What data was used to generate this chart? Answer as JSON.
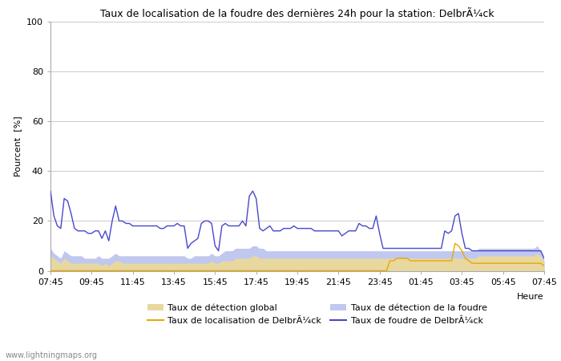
{
  "title": "Taux de localisation de la foudre des dernières 24h pour la station: DelbrÃ¼ck",
  "ylabel": "Pourcent  [%]",
  "xlabel": "Heure",
  "watermark": "www.lightningmaps.org",
  "xlabels": [
    "07:45",
    "09:45",
    "11:45",
    "13:45",
    "15:45",
    "17:45",
    "19:45",
    "21:45",
    "23:45",
    "01:45",
    "03:45",
    "05:45",
    "07:45"
  ],
  "ylim": [
    0,
    100
  ],
  "yticks": [
    0,
    20,
    40,
    60,
    80,
    100
  ],
  "color_fill1": "#e8d8a0",
  "color_fill2": "#c0c8f0",
  "color_blue": "#4848cc",
  "color_orange": "#e8a800",
  "bg_color": "#f8f8f8",
  "n_points": 145,
  "blue_line": [
    32,
    22,
    18,
    17,
    29,
    28,
    23,
    17,
    16,
    16,
    16,
    15,
    15,
    16,
    16,
    13,
    16,
    12,
    20,
    26,
    20,
    20,
    19,
    19,
    18,
    18,
    18,
    18,
    18,
    18,
    18,
    18,
    17,
    17,
    18,
    18,
    18,
    19,
    18,
    18,
    9,
    11,
    12,
    13,
    19,
    20,
    20,
    19,
    10,
    8,
    18,
    19,
    18,
    18,
    18,
    18,
    20,
    18,
    30,
    32,
    29,
    17,
    16,
    17,
    18,
    16,
    16,
    16,
    17,
    17,
    17,
    18,
    17,
    17,
    17,
    17,
    17,
    16,
    16,
    16,
    16,
    16,
    16,
    16,
    16,
    14,
    15,
    16,
    16,
    16,
    19,
    18,
    18,
    17,
    17,
    22,
    15,
    9,
    9,
    9,
    9,
    9,
    9,
    9,
    9,
    9,
    9,
    9,
    9,
    9,
    9,
    9,
    9,
    9,
    9,
    16,
    15,
    16,
    22,
    23,
    15,
    9,
    9,
    8,
    8,
    8,
    8,
    8,
    8,
    8,
    8,
    8,
    8,
    8,
    8,
    8,
    8,
    8,
    8,
    8,
    8,
    8,
    8,
    8,
    5
  ],
  "fill1_top": [
    6,
    5,
    4,
    3,
    5,
    4,
    3,
    3,
    3,
    3,
    3,
    3,
    3,
    3,
    3,
    2,
    3,
    2,
    3,
    4,
    4,
    3,
    3,
    3,
    3,
    3,
    3,
    3,
    3,
    3,
    3,
    3,
    3,
    3,
    3,
    3,
    3,
    3,
    3,
    3,
    3,
    3,
    3,
    3,
    3,
    3,
    3,
    4,
    3,
    3,
    4,
    4,
    4,
    4,
    5,
    5,
    5,
    5,
    5,
    6,
    6,
    5,
    5,
    5,
    5,
    5,
    5,
    5,
    5,
    5,
    5,
    5,
    5,
    5,
    5,
    5,
    5,
    5,
    5,
    5,
    5,
    5,
    5,
    5,
    5,
    5,
    5,
    5,
    5,
    5,
    5,
    5,
    5,
    5,
    5,
    5,
    5,
    5,
    5,
    5,
    5,
    5,
    5,
    5,
    5,
    5,
    5,
    5,
    5,
    5,
    5,
    5,
    5,
    5,
    5,
    5,
    5,
    5,
    5,
    5,
    5,
    5,
    5,
    5,
    5,
    6,
    6,
    6,
    6,
    6,
    6,
    6,
    6,
    6,
    6,
    6,
    6,
    6,
    6,
    6,
    6,
    6,
    7,
    6,
    3
  ],
  "fill2_top": [
    9,
    7,
    6,
    5,
    8,
    7,
    6,
    6,
    6,
    6,
    5,
    5,
    5,
    5,
    6,
    5,
    5,
    5,
    6,
    7,
    6,
    6,
    6,
    6,
    6,
    6,
    6,
    6,
    6,
    6,
    6,
    6,
    6,
    6,
    6,
    6,
    6,
    6,
    6,
    6,
    5,
    5,
    6,
    6,
    6,
    6,
    6,
    7,
    6,
    6,
    7,
    8,
    8,
    8,
    9,
    9,
    9,
    9,
    9,
    10,
    10,
    9,
    9,
    8,
    8,
    8,
    8,
    8,
    8,
    8,
    8,
    8,
    8,
    8,
    8,
    8,
    8,
    8,
    8,
    8,
    8,
    8,
    8,
    8,
    8,
    8,
    8,
    8,
    8,
    8,
    8,
    8,
    8,
    8,
    8,
    8,
    8,
    8,
    8,
    8,
    8,
    8,
    8,
    8,
    8,
    8,
    8,
    8,
    8,
    8,
    8,
    8,
    8,
    8,
    8,
    8,
    8,
    8,
    8,
    8,
    8,
    8,
    8,
    8,
    8,
    9,
    9,
    9,
    9,
    9,
    9,
    9,
    9,
    9,
    9,
    9,
    9,
    9,
    9,
    9,
    9,
    9,
    10,
    8,
    4
  ],
  "orange_line": [
    0,
    0,
    0,
    0,
    0,
    0,
    0,
    0,
    0,
    0,
    0,
    0,
    0,
    0,
    0,
    0,
    0,
    0,
    0,
    0,
    0,
    0,
    0,
    0,
    0,
    0,
    0,
    0,
    0,
    0,
    0,
    0,
    0,
    0,
    0,
    0,
    0,
    0,
    0,
    0,
    0,
    0,
    0,
    0,
    0,
    0,
    0,
    0,
    0,
    0,
    0,
    0,
    0,
    0,
    0,
    0,
    0,
    0,
    0,
    0,
    0,
    0,
    0,
    0,
    0,
    0,
    0,
    0,
    0,
    0,
    0,
    0,
    0,
    0,
    0,
    0,
    0,
    0,
    0,
    0,
    0,
    0,
    0,
    0,
    0,
    0,
    0,
    0,
    0,
    0,
    0,
    0,
    0,
    0,
    0,
    0,
    0,
    0,
    0,
    4,
    4,
    5,
    5,
    5,
    5,
    4,
    4,
    4,
    4,
    4,
    4,
    4,
    4,
    4,
    4,
    4,
    4,
    4,
    11,
    10,
    8,
    5,
    4,
    3,
    3,
    3,
    3,
    3,
    3,
    3,
    3,
    3,
    3,
    3,
    3,
    3,
    3,
    3,
    3,
    3,
    3,
    3,
    3,
    3,
    2
  ]
}
